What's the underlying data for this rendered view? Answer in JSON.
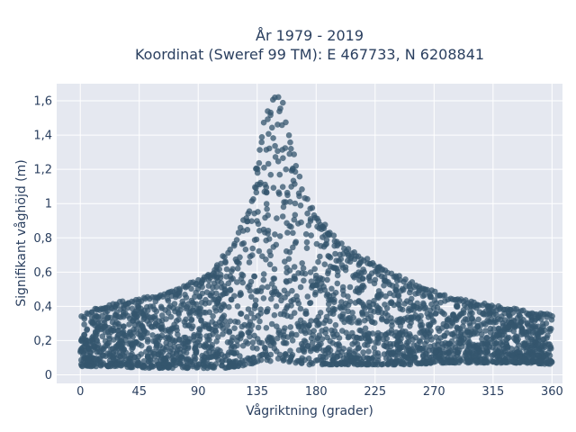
{
  "chart_data": {
    "type": "scatter",
    "title_line1": "År 1979 - 2019",
    "title_line2": "Koordinat (Sweref 99 TM): E 467733, N 6208841",
    "xlabel": "Vågriktning (grader)",
    "ylabel": "Signifikant våghöjd (m)",
    "xlim": [
      -18,
      368
    ],
    "ylim": [
      -0.05,
      1.7
    ],
    "xticks": [
      0,
      45,
      90,
      135,
      180,
      225,
      270,
      315,
      360
    ],
    "xtick_labels": [
      "0",
      "45",
      "90",
      "135",
      "180",
      "225",
      "270",
      "315",
      "360"
    ],
    "yticks": [
      0,
      0.2,
      0.4,
      0.6,
      0.8,
      1,
      1.2,
      1.4,
      1.6
    ],
    "ytick_labels": [
      "0",
      "0,2",
      "0,4",
      "0,6",
      "0,8",
      "1",
      "1,2",
      "1,4",
      "1,6"
    ],
    "grid": true,
    "marker_color": "#34566d",
    "plot_bg": "#e5e8f0",
    "envelope_x": [
      0,
      10,
      20,
      30,
      45,
      60,
      75,
      90,
      100,
      110,
      120,
      130,
      135,
      140,
      145,
      150,
      155,
      160,
      170,
      180,
      190,
      200,
      210,
      225,
      240,
      255,
      270,
      285,
      300,
      315,
      330,
      345,
      360
    ],
    "envelope_upper": [
      0.34,
      0.38,
      0.4,
      0.42,
      0.44,
      0.46,
      0.5,
      0.55,
      0.6,
      0.7,
      0.82,
      1.0,
      1.3,
      1.5,
      1.57,
      1.6,
      1.55,
      1.35,
      1.05,
      0.92,
      0.82,
      0.75,
      0.7,
      0.64,
      0.58,
      0.52,
      0.48,
      0.44,
      0.42,
      0.4,
      0.38,
      0.36,
      0.35
    ],
    "envelope_lower": [
      0.05,
      0.05,
      0.05,
      0.05,
      0.04,
      0.04,
      0.04,
      0.04,
      0.04,
      0.04,
      0.05,
      0.06,
      0.07,
      0.08,
      0.08,
      0.08,
      0.08,
      0.07,
      0.06,
      0.06,
      0.06,
      0.06,
      0.06,
      0.06,
      0.06,
      0.06,
      0.07,
      0.07,
      0.07,
      0.07,
      0.07,
      0.07,
      0.06
    ]
  }
}
